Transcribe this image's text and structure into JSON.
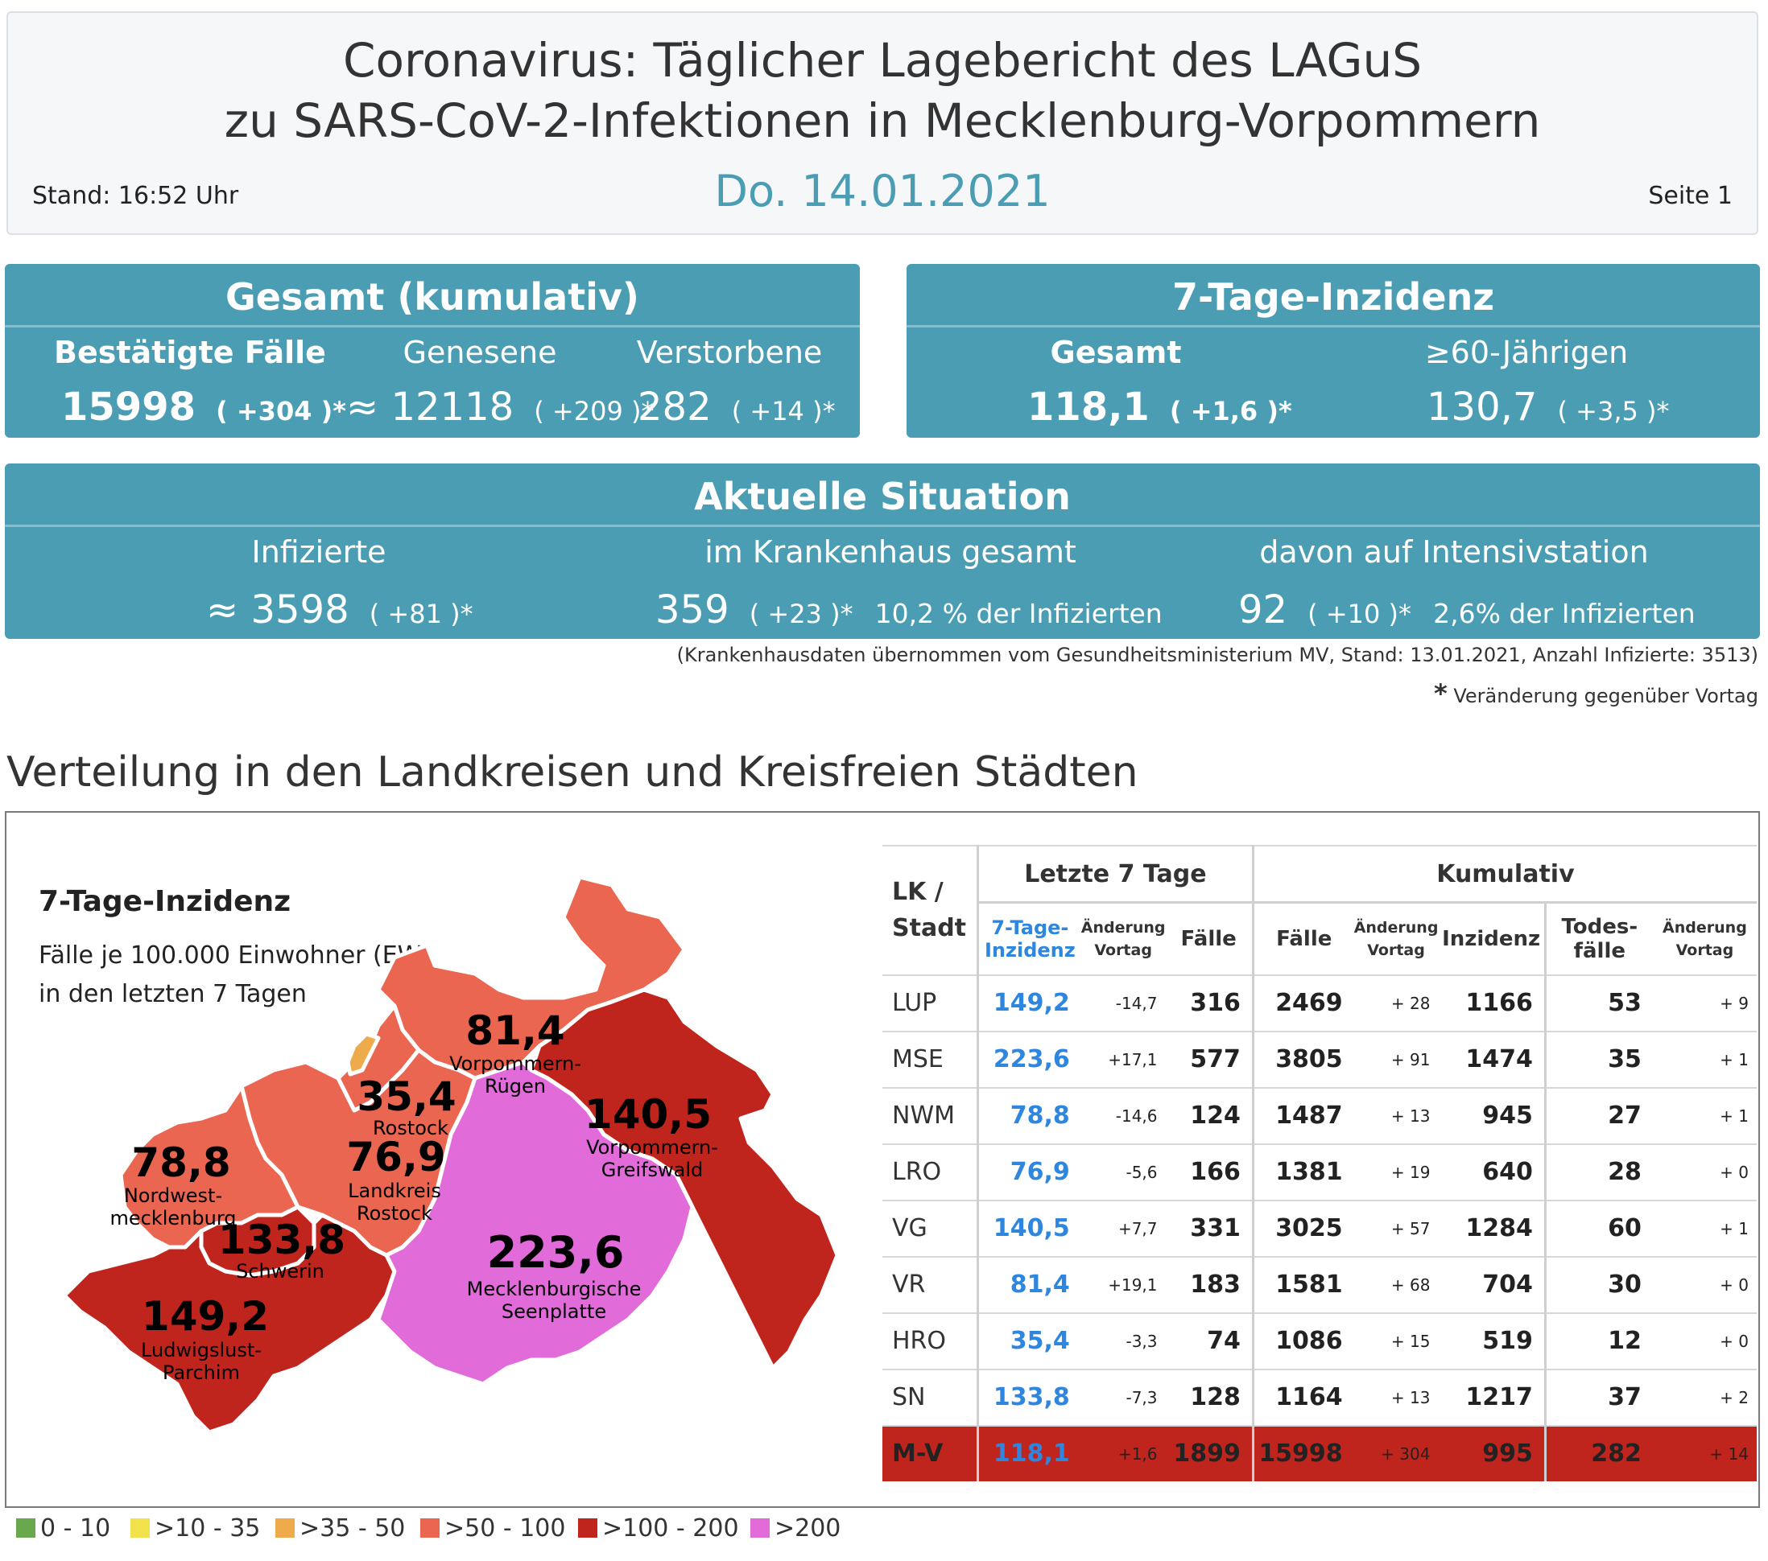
{
  "header": {
    "title_line1": "Coronavirus: Täglicher Lagebericht des LAGuS",
    "title_line2": "zu SARS-CoV-2-Infektionen in Mecklenburg-Vorpommern",
    "stand": "Stand: 16:52 Uhr",
    "date": "Do. 14.01.2021",
    "page": "Seite 1"
  },
  "gesamt": {
    "title": "Gesamt (kumulativ)",
    "confirmed_label": "Bestätigte Fälle",
    "confirmed_value": "15998",
    "confirmed_change": "( +304 )*",
    "recovered_label": "Genesene",
    "recovered_value": "≈ 12118",
    "recovered_change": "( +209 )*",
    "deaths_label": "Verstorbene",
    "deaths_value": "282",
    "deaths_change": "( +14 )*"
  },
  "inzidenz": {
    "title": "7-Tage-Inzidenz",
    "total_label": "Gesamt",
    "total_value": "118,1",
    "total_change": "( +1,6 )*",
    "over60_label": "≥60-Jährigen",
    "over60_value": "130,7",
    "over60_change": "( +3,5 )*"
  },
  "aktuell": {
    "title": "Aktuelle Situation",
    "infected_label": "Infizierte",
    "infected_value": "≈ 3598",
    "infected_change": "( +81 )*",
    "hospital_label": "im Krankenhaus gesamt",
    "hospital_value": "359",
    "hospital_change": "( +23 )*",
    "hospital_pct": "10,2 % der Infizierten",
    "icu_label": "davon auf Intensivstation",
    "icu_value": "92",
    "icu_change": "( +10 )*",
    "icu_pct": "2,6% der Infizierten"
  },
  "notes": {
    "hospital_source": "(Krankenhausdaten übernommen vom Gesundheitsministerium MV, Stand: 13.01.2021, Anzahl Infizierte: 3513)",
    "asterisk": "*",
    "change_note": "Veränderung gegenüber Vortag"
  },
  "section_title": "Verteilung in den Landkreisen und Kreisfreien Städten",
  "map": {
    "title": "7-Tage-Inzidenz",
    "subtitle1": "Fälle je 100.000 Einwohner (EW)",
    "subtitle2": "in den letzten 7 Tagen",
    "regions": [
      {
        "value": "81,4",
        "name1": "Vorpommern-",
        "name2": "Rügen"
      },
      {
        "value": "35,4",
        "name1": "Rostock",
        "name2": ""
      },
      {
        "value": "140,5",
        "name1": "Vorpommern-",
        "name2": "Greifswald"
      },
      {
        "value": "78,8",
        "name1": "Nordwest-",
        "name2": "mecklenburg"
      },
      {
        "value": "76,9",
        "name1": "Landkreis",
        "name2": "Rostock"
      },
      {
        "value": "133,8",
        "name1": "Schwerin",
        "name2": ""
      },
      {
        "value": "223,6",
        "name1": "Mecklenburgische",
        "name2": "Seenplatte"
      },
      {
        "value": "149,2",
        "name1": "Ludwigslust-",
        "name2": "Parchim"
      }
    ],
    "colors": {
      "c0": "#6aa84f",
      "c1": "#f1e14b",
      "c2": "#efab4b",
      "c3": "#ea6650",
      "c4": "#c0251d",
      "c5": "#e06bd9"
    }
  },
  "table": {
    "group_last7": "Letzte 7 Tage",
    "group_cum": "Kumulativ",
    "col_lk1": "LK /",
    "col_lk2": "Stadt",
    "col_inz1": "7-Tage-",
    "col_inz2": "Inzidenz",
    "col_chg1": "Änderung",
    "col_chg2": "Vortag",
    "col_faelle": "Fälle",
    "col_cfaelle": "Fälle",
    "col_cchg1": "Änderung",
    "col_cchg2": "Vortag",
    "col_cinz": "Inzidenz",
    "col_tod1": "Todes-",
    "col_tod2": "fälle",
    "col_tchg1": "Änderung",
    "col_tchg2": "Vortag",
    "rows": [
      {
        "lk": "LUP",
        "inz": "149,2",
        "chg": "-14,7",
        "f7": "316",
        "f": "2469",
        "fchg": "+ 28",
        "cinz": "1166",
        "tod": "53",
        "tchg": "+ 9"
      },
      {
        "lk": "MSE",
        "inz": "223,6",
        "chg": "+17,1",
        "f7": "577",
        "f": "3805",
        "fchg": "+ 91",
        "cinz": "1474",
        "tod": "35",
        "tchg": "+ 1"
      },
      {
        "lk": "NWM",
        "inz": "78,8",
        "chg": "-14,6",
        "f7": "124",
        "f": "1487",
        "fchg": "+ 13",
        "cinz": "945",
        "tod": "27",
        "tchg": "+ 1"
      },
      {
        "lk": "LRO",
        "inz": "76,9",
        "chg": "-5,6",
        "f7": "166",
        "f": "1381",
        "fchg": "+ 19",
        "cinz": "640",
        "tod": "28",
        "tchg": "+ 0"
      },
      {
        "lk": "VG",
        "inz": "140,5",
        "chg": "+7,7",
        "f7": "331",
        "f": "3025",
        "fchg": "+ 57",
        "cinz": "1284",
        "tod": "60",
        "tchg": "+ 1"
      },
      {
        "lk": "VR",
        "inz": "81,4",
        "chg": "+19,1",
        "f7": "183",
        "f": "1581",
        "fchg": "+ 68",
        "cinz": "704",
        "tod": "30",
        "tchg": "+ 0"
      },
      {
        "lk": "HRO",
        "inz": "35,4",
        "chg": "-3,3",
        "f7": "74",
        "f": "1086",
        "fchg": "+ 15",
        "cinz": "519",
        "tod": "12",
        "tchg": "+ 0"
      },
      {
        "lk": "SN",
        "inz": "133,8",
        "chg": "-7,3",
        "f7": "128",
        "f": "1164",
        "fchg": "+ 13",
        "cinz": "1217",
        "tod": "37",
        "tchg": "+ 2"
      },
      {
        "lk": "M-V",
        "inz": "118,1",
        "chg": "+1,6",
        "f7": "1899",
        "f": "15998",
        "fchg": "+ 304",
        "cinz": "995",
        "tod": "282",
        "tchg": "+ 14"
      }
    ]
  },
  "legend": [
    "0 - 10",
    ">10 - 35",
    ">35 - 50",
    ">50 - 100",
    ">100 - 200",
    ">200"
  ]
}
